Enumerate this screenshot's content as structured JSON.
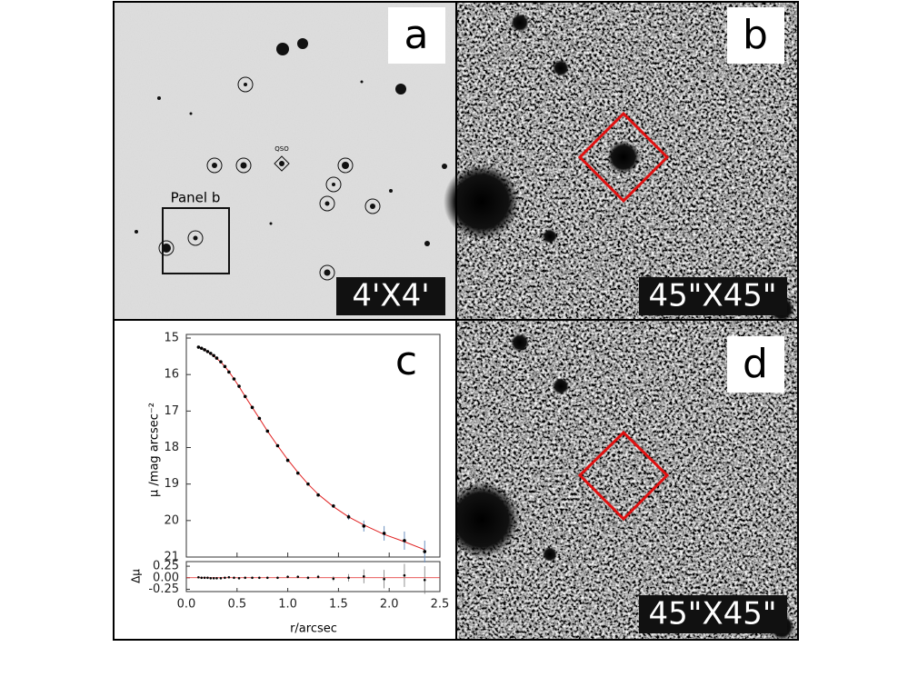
{
  "panels": {
    "a": {
      "label": "a",
      "scale": "4'X4'",
      "box": "Panel b",
      "marker": "QSO"
    },
    "b": {
      "label": "b",
      "scale": "45\"X45\""
    },
    "d": {
      "label": "d",
      "scale": "45\"X45\""
    }
  },
  "chart_data": {
    "type": "profile",
    "label": "c",
    "ylabel": "μ /mag arcsec⁻²",
    "xlabel": "r/arcsec",
    "x": [
      0.12,
      0.15,
      0.18,
      0.21,
      0.24,
      0.27,
      0.3,
      0.34,
      0.38,
      0.42,
      0.47,
      0.52,
      0.58,
      0.65,
      0.72,
      0.8,
      0.9,
      1.0,
      1.1,
      1.2,
      1.3,
      1.45,
      1.6,
      1.75,
      1.95,
      2.15,
      2.35
    ],
    "series": [
      {
        "color": "#000000",
        "values": [
          15.25,
          15.28,
          15.32,
          15.37,
          15.42,
          15.48,
          15.55,
          15.65,
          15.78,
          15.93,
          16.12,
          16.32,
          16.6,
          16.9,
          17.2,
          17.55,
          17.95,
          18.35,
          18.7,
          19.0,
          19.3,
          19.6,
          19.9,
          20.15,
          20.35,
          20.55,
          20.85
        ],
        "errors": [
          0.01,
          0.01,
          0.01,
          0.01,
          0.01,
          0.01,
          0.01,
          0.01,
          0.01,
          0.01,
          0.01,
          0.01,
          0.02,
          0.02,
          0.02,
          0.02,
          0.02,
          0.03,
          0.03,
          0.03,
          0.04,
          0.05,
          0.08,
          0.15,
          0.2,
          0.25,
          0.3
        ]
      },
      {
        "color": "#e02020",
        "values": [
          15.24,
          15.28,
          15.32,
          15.37,
          15.43,
          15.49,
          15.56,
          15.66,
          15.78,
          15.92,
          16.12,
          16.33,
          16.6,
          16.9,
          17.2,
          17.55,
          17.95,
          18.33,
          18.68,
          19.0,
          19.28,
          19.62,
          19.9,
          20.12,
          20.38,
          20.58,
          20.8
        ]
      }
    ],
    "xlim": [
      0,
      2.5
    ],
    "xticks": [
      {
        "value": 0,
        "label": "0.0"
      },
      0.5,
      {
        "value": 1,
        "label": "1.0"
      },
      1.5,
      {
        "value": 2,
        "label": "2.0"
      },
      2.5
    ],
    "ylim": [
      14.9,
      21
    ],
    "y_inverted": true,
    "yticks": [
      15,
      16,
      17,
      18,
      19,
      20,
      21
    ],
    "residuals": {
      "ylabel": "Δμ",
      "ylim": [
        -0.3,
        0.35
      ],
      "yticks": [
        0.25,
        {
          "value": 0,
          "label": "0.00"
        },
        -0.25
      ],
      "values": [
        0.01,
        0.0,
        0.0,
        0.0,
        -0.01,
        -0.01,
        -0.01,
        -0.01,
        0.0,
        0.01,
        0.0,
        -0.01,
        0.0,
        0.0,
        0.0,
        0.0,
        0.0,
        0.02,
        0.02,
        0.0,
        0.02,
        -0.02,
        0.0,
        0.03,
        -0.03,
        0.05,
        -0.05
      ],
      "errors": [
        0.01,
        0.01,
        0.01,
        0.01,
        0.01,
        0.01,
        0.01,
        0.01,
        0.01,
        0.01,
        0.01,
        0.01,
        0.02,
        0.02,
        0.02,
        0.02,
        0.02,
        0.03,
        0.03,
        0.03,
        0.04,
        0.05,
        0.08,
        0.15,
        0.2,
        0.25,
        0.3
      ]
    }
  }
}
